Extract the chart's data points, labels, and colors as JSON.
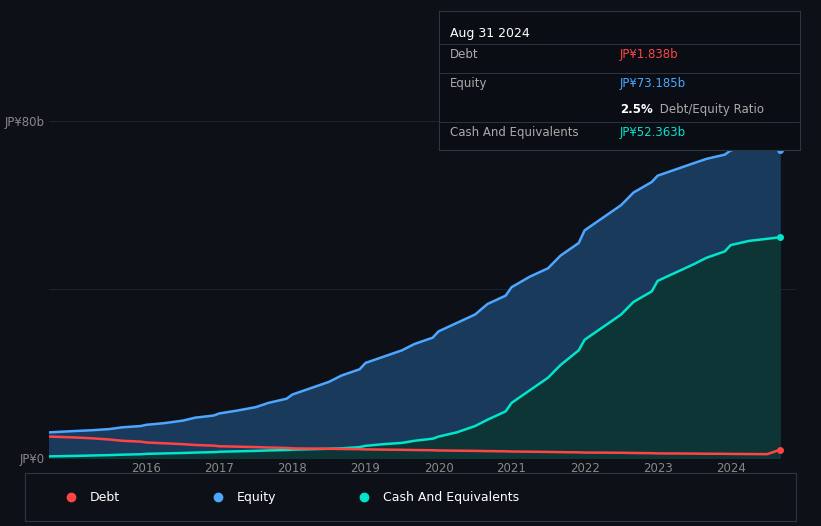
{
  "background_color": "#0d1117",
  "plot_bg_color": "#0d1117",
  "grid_color": "#1e2638",
  "debt_color": "#ff4444",
  "equity_color": "#4da6ff",
  "cash_color": "#00e5cc",
  "equity_fill_color": "#1a3a5c",
  "cash_fill_color": "#0d3535",
  "ylabel_80b": "JP¥80b",
  "ylabel_0": "JP¥0",
  "years": [
    2014.67,
    2015.0,
    2015.25,
    2015.5,
    2015.67,
    2015.92,
    2016.0,
    2016.25,
    2016.5,
    2016.67,
    2016.92,
    2017.0,
    2017.25,
    2017.5,
    2017.67,
    2017.92,
    2018.0,
    2018.25,
    2018.5,
    2018.67,
    2018.92,
    2019.0,
    2019.25,
    2019.5,
    2019.67,
    2019.92,
    2020.0,
    2020.25,
    2020.5,
    2020.67,
    2020.92,
    2021.0,
    2021.25,
    2021.5,
    2021.67,
    2021.92,
    2022.0,
    2022.25,
    2022.5,
    2022.67,
    2022.92,
    2023.0,
    2023.25,
    2023.5,
    2023.67,
    2023.92,
    2024.0,
    2024.25,
    2024.5,
    2024.67
  ],
  "debt_values": [
    5.0,
    4.8,
    4.6,
    4.3,
    4.0,
    3.8,
    3.6,
    3.4,
    3.2,
    3.0,
    2.85,
    2.7,
    2.6,
    2.5,
    2.4,
    2.3,
    2.2,
    2.15,
    2.1,
    2.05,
    2.0,
    1.95,
    1.9,
    1.85,
    1.8,
    1.75,
    1.7,
    1.65,
    1.6,
    1.55,
    1.5,
    1.45,
    1.4,
    1.35,
    1.3,
    1.25,
    1.2,
    1.18,
    1.15,
    1.1,
    1.05,
    1.0,
    0.98,
    0.95,
    0.92,
    0.9,
    0.88,
    0.85,
    0.82,
    1.838
  ],
  "equity_values": [
    6.0,
    6.3,
    6.5,
    6.8,
    7.2,
    7.5,
    7.8,
    8.2,
    8.8,
    9.5,
    10.0,
    10.5,
    11.2,
    12.0,
    13.0,
    14.0,
    15.0,
    16.5,
    18.0,
    19.5,
    21.0,
    22.5,
    24.0,
    25.5,
    27.0,
    28.5,
    30.0,
    32.0,
    34.0,
    36.5,
    38.5,
    40.5,
    43.0,
    45.0,
    48.0,
    51.0,
    54.0,
    57.0,
    60.0,
    63.0,
    65.5,
    67.0,
    68.5,
    70.0,
    71.0,
    72.0,
    73.0,
    74.0,
    75.5,
    73.185
  ],
  "cash_values": [
    0.3,
    0.4,
    0.5,
    0.6,
    0.7,
    0.8,
    0.9,
    1.0,
    1.1,
    1.2,
    1.3,
    1.4,
    1.5,
    1.6,
    1.7,
    1.8,
    1.9,
    2.0,
    2.1,
    2.2,
    2.5,
    2.8,
    3.2,
    3.5,
    4.0,
    4.5,
    5.0,
    6.0,
    7.5,
    9.0,
    11.0,
    13.0,
    16.0,
    19.0,
    22.0,
    25.5,
    28.0,
    31.0,
    34.0,
    37.0,
    39.5,
    42.0,
    44.0,
    46.0,
    47.5,
    49.0,
    50.5,
    51.5,
    52.0,
    52.363
  ],
  "tooltip": {
    "date": "Aug 31 2024",
    "debt_label": "Debt",
    "debt_value": "JP¥1.838b",
    "debt_value_color": "#ff4444",
    "equity_label": "Equity",
    "equity_value": "JP¥73.185b",
    "equity_value_color": "#4da6ff",
    "ratio_value": "2.5%",
    "ratio_text": " Debt/Equity Ratio",
    "cash_label": "Cash And Equivalents",
    "cash_value": "JP¥52.363b",
    "cash_value_color": "#00e5cc"
  },
  "legend_items": [
    {
      "label": "Debt",
      "color": "#ff4444"
    },
    {
      "label": "Equity",
      "color": "#4da6ff"
    },
    {
      "label": "Cash And Equivalents",
      "color": "#00e5cc"
    }
  ],
  "ylim": [
    0,
    90
  ],
  "xlim": [
    2014.67,
    2024.9
  ]
}
